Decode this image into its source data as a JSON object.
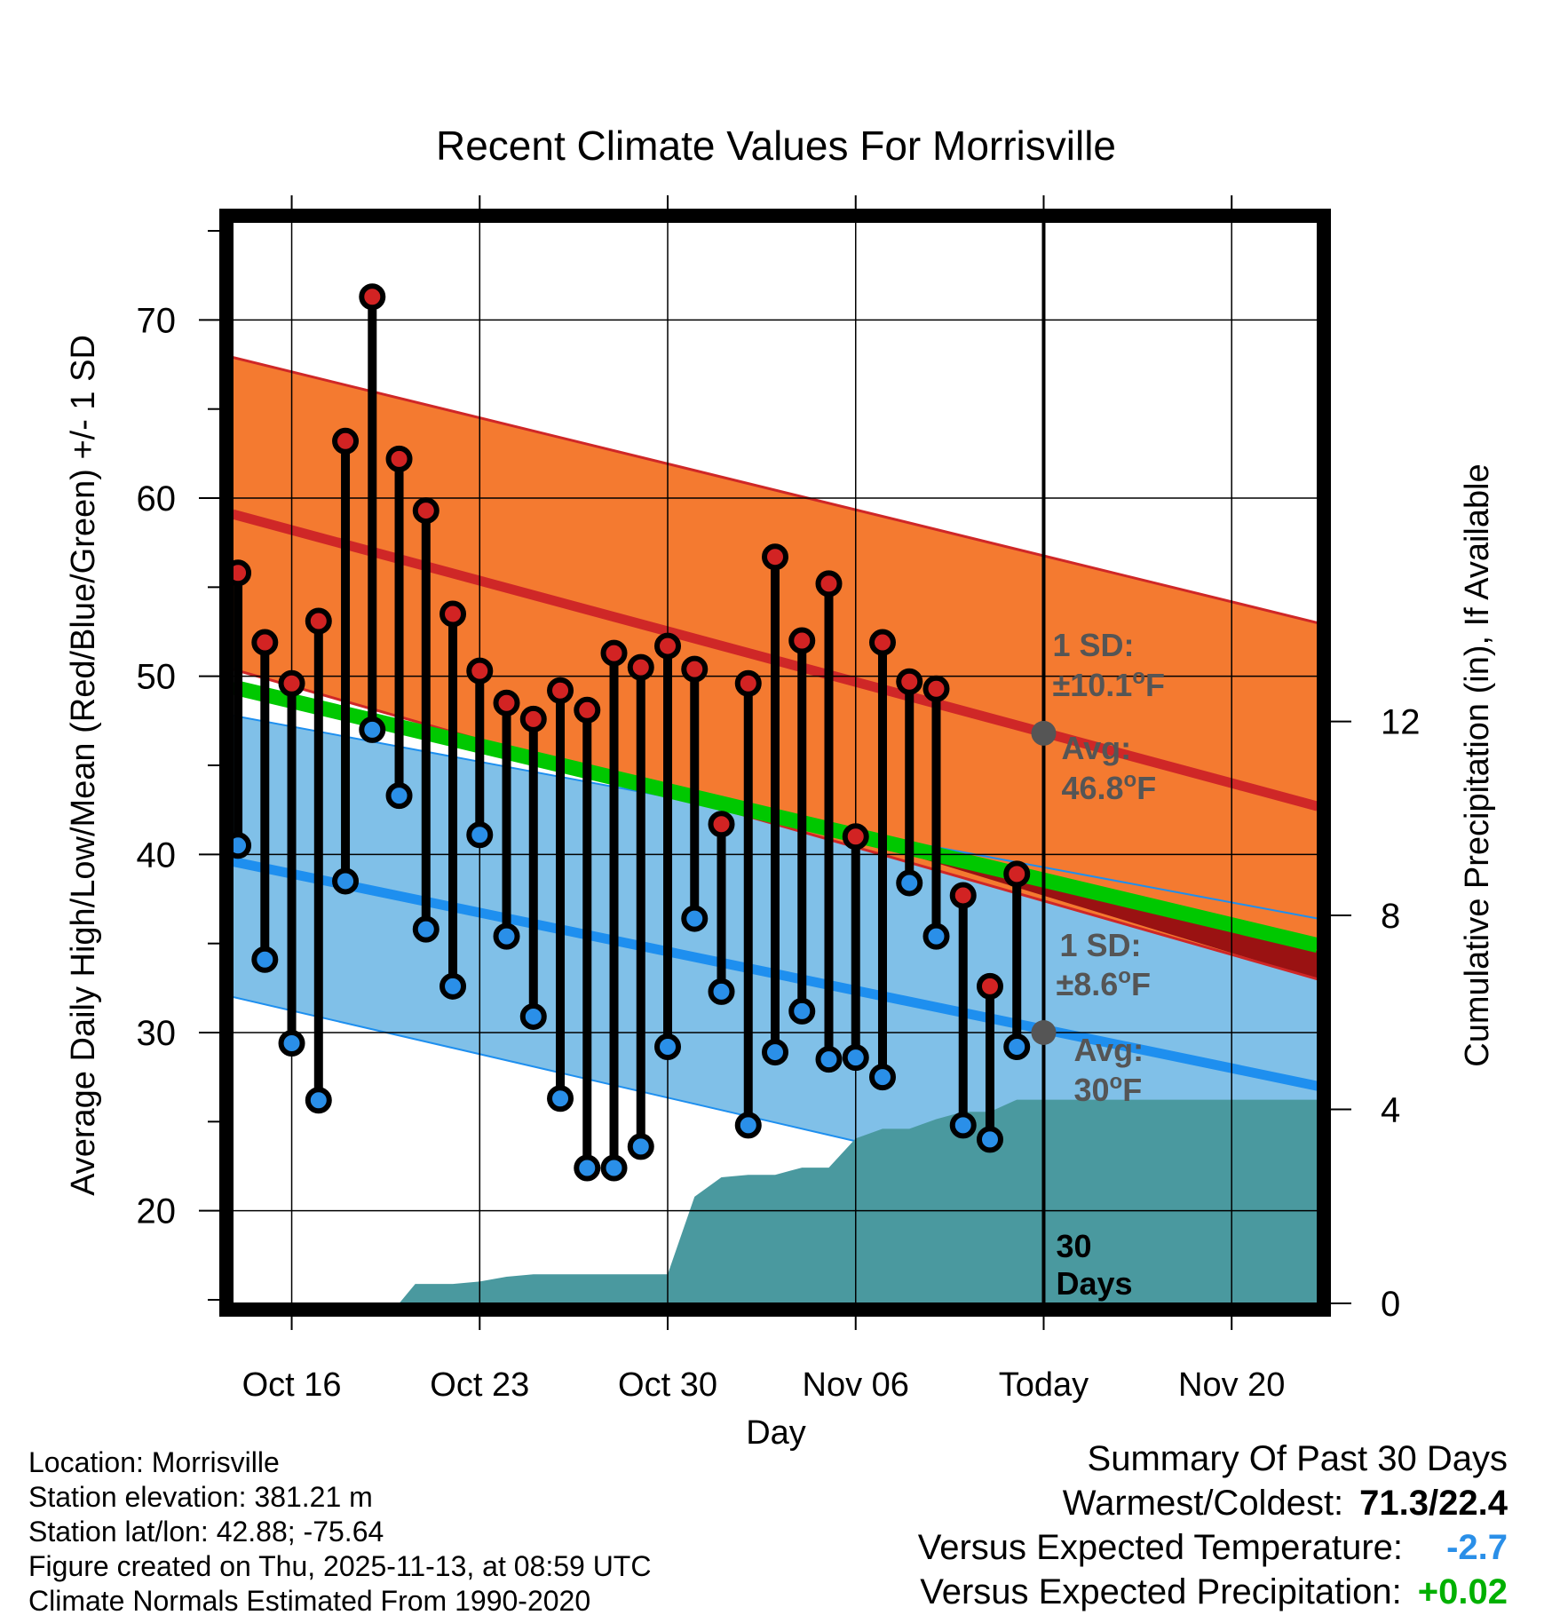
{
  "chart_data": {
    "type": "line",
    "title": "Recent Climate Values For Morrisville",
    "xlabel": "Day",
    "ylabel": "Average Daily High/Low/Mean (Red/Blue/Green) +/- 1 SD",
    "y2label": "Cumulative Precipitation (in), If Available",
    "xlim": [
      -2.2,
      38.2
    ],
    "ylim": [
      14.8,
      75.5
    ],
    "y2lim": [
      0,
      22.3
    ],
    "x_ticks": [
      {
        "x": 0,
        "label": "Oct 16"
      },
      {
        "x": 7,
        "label": "Oct 23"
      },
      {
        "x": 14,
        "label": "Oct 30"
      },
      {
        "x": 21,
        "label": "Nov 06"
      },
      {
        "x": 28,
        "label": "Today"
      },
      {
        "x": 35,
        "label": "Nov 20"
      }
    ],
    "y_ticks": [
      20,
      30,
      40,
      50,
      60,
      70
    ],
    "y2_ticks": [
      0,
      4,
      8,
      12
    ],
    "high_observed": {
      "x": [
        -2,
        -1,
        0,
        1,
        2,
        3,
        4,
        5,
        6,
        7,
        8,
        9,
        10,
        11,
        12,
        13,
        14,
        15,
        16,
        17,
        18,
        19,
        20,
        21,
        22,
        23,
        24,
        25,
        26,
        27
      ],
      "values": [
        55.8,
        51.9,
        49.6,
        53.1,
        63.2,
        71.3,
        62.2,
        59.3,
        53.5,
        50.3,
        48.5,
        47.6,
        49.2,
        48.1,
        51.3,
        50.5,
        51.7,
        50.4,
        41.7,
        49.6,
        56.7,
        52.0,
        55.2,
        41.0,
        51.9,
        49.7,
        49.3,
        37.7,
        32.6,
        38.9
      ]
    },
    "low_observed": {
      "x": [
        -2,
        -1,
        0,
        1,
        2,
        3,
        4,
        5,
        6,
        7,
        8,
        9,
        10,
        11,
        12,
        13,
        14,
        15,
        16,
        17,
        18,
        19,
        20,
        21,
        22,
        23,
        24,
        25,
        26,
        27
      ],
      "values": [
        40.5,
        34.1,
        29.4,
        26.2,
        38.5,
        47.0,
        43.3,
        35.8,
        32.6,
        41.1,
        35.4,
        30.9,
        26.3,
        22.4,
        22.4,
        23.6,
        29.2,
        36.4,
        32.3,
        24.8,
        28.9,
        31.2,
        28.5,
        28.6,
        27.5,
        38.4,
        35.4,
        24.8,
        24.0,
        29.2
      ]
    },
    "normal_high": {
      "x": [
        -2.2,
        38.2
      ],
      "values": [
        59.1,
        42.7
      ]
    },
    "normal_high_sd_band": {
      "upper": [
        67.9,
        53.0
      ],
      "lower": [
        50.4,
        33.0
      ]
    },
    "normal_low": {
      "x": [
        -2.2,
        38.2
      ],
      "values": [
        39.6,
        27.0
      ]
    },
    "normal_low_sd_band": {
      "upper": [
        47.8,
        36.4
      ],
      "lower": [
        32.0,
        17.9
      ]
    },
    "normal_mean": {
      "x": [
        -2.2,
        38.2
      ],
      "values": [
        49.4,
        34.9
      ]
    },
    "cumulative_precip": {
      "x": [
        4,
        4.6,
        6,
        7,
        8,
        9,
        10,
        11,
        12,
        13,
        14,
        15,
        16,
        17,
        18,
        19,
        20,
        21,
        22,
        23,
        24,
        25,
        26,
        27,
        28,
        38.2
      ],
      "values": [
        0,
        0.4,
        0.4,
        0.45,
        0.55,
        0.6,
        0.6,
        0.6,
        0.6,
        0.6,
        0.6,
        2.2,
        2.6,
        2.65,
        2.65,
        2.8,
        2.8,
        3.4,
        3.6,
        3.6,
        3.8,
        3.95,
        3.95,
        4.2,
        4.2,
        4.2
      ]
    },
    "today_marker": {
      "x": 28,
      "label_line1": "30",
      "label_line2": "Days"
    },
    "high_annotation": {
      "avg_point": 46.8,
      "sd_text": "1 SD:",
      "sd_value": "±10.1",
      "avg_text": "Avg:",
      "avg_value": "46.8",
      "unit": "F"
    },
    "low_annotation": {
      "avg_point": 30.0,
      "sd_text": "1 SD:",
      "sd_value": "±8.6",
      "avg_text": "Avg:",
      "avg_value": "30",
      "unit": "F"
    },
    "colors": {
      "high_band": "#f47a30",
      "high_line": "#cf2727",
      "low_band": "#80c0e8",
      "low_line": "#1e8fef",
      "mean_line": "#00c800",
      "precip": "#4a999f",
      "dark_red": "#9a1212",
      "annotation": "#555555",
      "dot_high": "#d22323",
      "dot_low": "#2a8fe8"
    }
  },
  "footer": {
    "location": "Location: Morrisville",
    "elevation": "Station elevation: 381.21 m",
    "latlon": "Station lat/lon: 42.88; -75.64",
    "created": "Figure created on Thu, 2025-11-13, at 08:59 UTC",
    "normals": "Climate Normals Estimated From 1990-2020"
  },
  "summary": {
    "title": "Summary Of Past 30 Days",
    "warm_cold_label": "Warmest/Coldest:",
    "warm_cold_value": "71.3/22.4",
    "temp_label": "Versus Expected Temperature:",
    "temp_value": "-2.7",
    "precip_label": "Versus Expected Precipitation:",
    "precip_value": "+0.02",
    "temp_color": "#2a8fe8",
    "precip_color": "#00b000"
  }
}
